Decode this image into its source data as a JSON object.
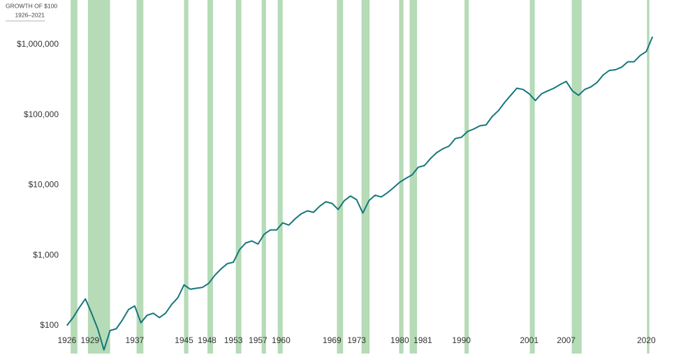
{
  "chart_data": {
    "type": "line",
    "title": "GROWTH OF $100",
    "subtitle": "1926–2021",
    "log_scale": true,
    "xlim": [
      1925,
      2022
    ],
    "ylim": [
      40,
      3000000
    ],
    "xticks": [
      1926,
      1929,
      1937,
      1945,
      1948,
      1953,
      1957,
      1960,
      1969,
      1973,
      1980,
      1981,
      1990,
      2001,
      2007,
      2020
    ],
    "yticks": [
      {
        "value": 100,
        "label": "$100"
      },
      {
        "value": 1000,
        "label": "$1,000"
      },
      {
        "value": 10000,
        "label": "$10,000"
      },
      {
        "value": 100000,
        "label": "$100,000"
      },
      {
        "value": 1000000,
        "label": "$1,000,000"
      }
    ],
    "band_color": "#b5dbb7",
    "recessions": [
      [
        1926.6,
        1927.7
      ],
      [
        1929.4,
        1933.0
      ],
      [
        1937.3,
        1938.4
      ],
      [
        1945.0,
        1945.7
      ],
      [
        1948.8,
        1949.7
      ],
      [
        1953.4,
        1954.3
      ],
      [
        1957.6,
        1958.3
      ],
      [
        1960.2,
        1961.0
      ],
      [
        1969.8,
        1970.8
      ],
      [
        1973.8,
        1975.1
      ],
      [
        1979.9,
        1980.6
      ],
      [
        1981.6,
        1982.8
      ],
      [
        1990.5,
        1991.2
      ],
      [
        2001.1,
        2001.9
      ],
      [
        2007.9,
        2009.5
      ],
      [
        2020.1,
        2020.5
      ]
    ],
    "series": [
      {
        "name": "Growth of $100",
        "color": "#16777c",
        "x": [
          1926,
          1927,
          1928,
          1929,
          1930,
          1931,
          1932,
          1933,
          1934,
          1935,
          1936,
          1937,
          1938,
          1939,
          1940,
          1941,
          1942,
          1943,
          1944,
          1945,
          1946,
          1947,
          1948,
          1949,
          1950,
          1951,
          1952,
          1953,
          1954,
          1955,
          1956,
          1957,
          1958,
          1959,
          1960,
          1961,
          1962,
          1963,
          1964,
          1965,
          1966,
          1967,
          1968,
          1969,
          1970,
          1971,
          1972,
          1973,
          1974,
          1975,
          1976,
          1977,
          1978,
          1979,
          1980,
          1981,
          1982,
          1983,
          1984,
          1985,
          1986,
          1987,
          1988,
          1989,
          1990,
          1991,
          1992,
          1993,
          1994,
          1995,
          1996,
          1997,
          1998,
          1999,
          2000,
          2001,
          2002,
          2003,
          2004,
          2005,
          2006,
          2007,
          2008,
          2009,
          2010,
          2011,
          2012,
          2013,
          2014,
          2015,
          2016,
          2017,
          2018,
          2019,
          2020,
          2021
        ],
        "values": [
          100,
          130,
          180,
          240,
          150,
          90,
          45,
          85,
          90,
          120,
          170,
          190,
          110,
          140,
          150,
          130,
          150,
          200,
          250,
          380,
          330,
          340,
          350,
          400,
          520,
          640,
          760,
          800,
          1200,
          1500,
          1600,
          1450,
          2000,
          2300,
          2300,
          2900,
          2700,
          3300,
          3900,
          4300,
          4100,
          5000,
          5800,
          5500,
          4500,
          6000,
          7000,
          6200,
          4000,
          6000,
          7200,
          6800,
          7800,
          9200,
          11000,
          12500,
          14000,
          18000,
          19000,
          24000,
          29000,
          33000,
          36000,
          46000,
          48000,
          58000,
          63000,
          70000,
          72000,
          95000,
          115000,
          150000,
          190000,
          240000,
          230000,
          200000,
          160000,
          200000,
          220000,
          240000,
          270000,
          300000,
          220000,
          190000,
          230000,
          250000,
          290000,
          370000,
          430000,
          440000,
          480000,
          570000,
          570000,
          700000,
          800000,
          1300000
        ]
      }
    ]
  }
}
